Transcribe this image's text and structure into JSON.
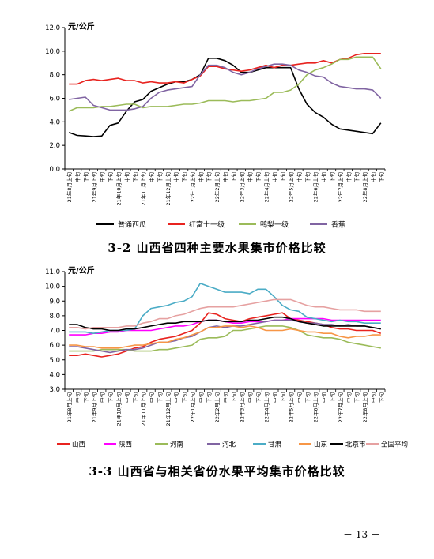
{
  "page_number": "－ 13 －",
  "chart_data": [
    {
      "type": "line",
      "caption": "3-2 山西省四种主要水果集市价格比较",
      "ylabel": "元/公斤",
      "ylim": [
        0,
        12
      ],
      "yticks": [
        "0.0",
        "2.0",
        "4.0",
        "6.0",
        "8.0",
        "10.0",
        "12.0"
      ],
      "ytick_values": [
        0,
        2,
        4,
        6,
        8,
        10,
        12
      ],
      "grid": false,
      "legend_position": "bottom",
      "categories": [
        "21年8月上旬",
        "中旬",
        "下旬",
        "21年9月上旬",
        "中旬",
        "下旬",
        "21年10月上旬",
        "中旬",
        "下旬",
        "21年11月上旬",
        "中旬",
        "下旬",
        "21年12月上旬",
        "中旬",
        "下旬",
        "22年1月上旬",
        "中旬",
        "下旬",
        "22年2月上旬",
        "中旬",
        "下旬",
        "22年3月上旬",
        "中旬",
        "下旬",
        "22年4月上旬",
        "中旬",
        "下旬",
        "22年5月上旬",
        "中旬",
        "下旬",
        "22年6月上旬",
        "中旬",
        "下旬",
        "22年7月上旬",
        "中旬",
        "下旬",
        "22年8月上旬",
        "中旬",
        "下旬"
      ],
      "series": [
        {
          "name": "普通西瓜",
          "color": "#000000",
          "values": [
            3.1,
            2.85,
            2.8,
            2.75,
            2.8,
            3.7,
            3.9,
            4.9,
            5.7,
            5.9,
            6.6,
            6.9,
            7.2,
            7.4,
            7.4,
            7.6,
            8.0,
            9.4,
            9.4,
            9.2,
            8.8,
            8.2,
            8.2,
            8.4,
            8.6,
            8.6,
            8.6,
            8.6,
            6.8,
            5.5,
            4.8,
            4.4,
            3.8,
            3.4,
            3.3,
            3.2,
            3.1,
            3.0,
            3.9
          ]
        },
        {
          "name": "红富士一级",
          "color": "#e8231f",
          "values": [
            7.2,
            7.2,
            7.5,
            7.6,
            7.5,
            7.6,
            7.7,
            7.5,
            7.5,
            7.3,
            7.4,
            7.3,
            7.3,
            7.4,
            7.3,
            7.6,
            7.9,
            8.7,
            8.7,
            8.5,
            8.4,
            8.3,
            8.4,
            8.6,
            8.8,
            8.6,
            8.8,
            8.8,
            8.9,
            9.0,
            9.0,
            9.2,
            9.0,
            9.3,
            9.4,
            9.7,
            9.8,
            9.8,
            9.8
          ]
        },
        {
          "name": "鸭梨一级",
          "color": "#9bbb59",
          "values": [
            4.9,
            5.2,
            5.2,
            5.2,
            5.3,
            5.3,
            5.4,
            5.5,
            5.5,
            5.2,
            5.3,
            5.3,
            5.3,
            5.4,
            5.5,
            5.5,
            5.6,
            5.8,
            5.8,
            5.8,
            5.7,
            5.8,
            5.8,
            5.9,
            6.0,
            6.5,
            6.5,
            6.7,
            7.2,
            8.0,
            8.4,
            8.6,
            8.9,
            9.3,
            9.3,
            9.5,
            9.5,
            9.5,
            8.5
          ]
        },
        {
          "name": "香蕉",
          "color": "#8064a2",
          "values": [
            5.9,
            6.0,
            6.1,
            5.4,
            5.2,
            5.0,
            5.0,
            5.0,
            5.1,
            5.3,
            6.0,
            6.5,
            6.7,
            6.8,
            6.9,
            7.0,
            8.0,
            8.8,
            8.8,
            8.6,
            8.2,
            8.0,
            8.2,
            8.5,
            8.7,
            8.9,
            8.9,
            8.8,
            8.4,
            8.2,
            7.9,
            7.8,
            7.3,
            7.0,
            6.9,
            6.8,
            6.8,
            6.7,
            6.0
          ]
        }
      ]
    },
    {
      "type": "line",
      "caption": "3-3 山西省与相关省份水果平均集市价格比较",
      "ylabel": "元/公斤",
      "ylim": [
        3,
        11
      ],
      "yticks": [
        "3.0",
        "4.0",
        "5.0",
        "6.0",
        "7.0",
        "8.0",
        "9.0",
        "10.0",
        "11.0"
      ],
      "ytick_values": [
        3,
        4,
        5,
        6,
        7,
        8,
        9,
        10,
        11
      ],
      "grid": false,
      "legend_position": "bottom",
      "categories": [
        "21年8月上旬",
        "中旬",
        "下旬",
        "21年9月上旬",
        "中旬",
        "下旬",
        "21年10月上旬",
        "中旬",
        "下旬",
        "21年11月上旬",
        "中旬",
        "下旬",
        "21年12月上旬",
        "中旬",
        "下旬",
        "22年1月上旬",
        "中旬",
        "下旬",
        "22年2月上旬",
        "中旬",
        "下旬",
        "22年3月上旬",
        "中旬",
        "下旬",
        "22年4月上旬",
        "中旬",
        "下旬",
        "22年5月上旬",
        "中旬",
        "下旬",
        "22年6月上旬",
        "中旬",
        "下旬",
        "22年7月上旬",
        "中旬",
        "下旬",
        "22年8月上旬",
        "中旬",
        "下旬"
      ],
      "series": [
        {
          "name": "山西",
          "color": "#e8231f",
          "values": [
            5.3,
            5.3,
            5.4,
            5.3,
            5.2,
            5.3,
            5.4,
            5.6,
            5.8,
            5.9,
            6.2,
            6.4,
            6.5,
            6.6,
            6.8,
            7.0,
            7.5,
            8.2,
            8.1,
            7.8,
            7.7,
            7.6,
            7.8,
            7.9,
            8.0,
            8.1,
            8.2,
            7.8,
            7.7,
            7.6,
            7.5,
            7.4,
            7.2,
            7.1,
            7.1,
            7.0,
            7.0,
            7.0,
            6.8
          ]
        },
        {
          "name": "陕西",
          "color": "#ff00ff",
          "values": [
            6.7,
            6.7,
            6.7,
            6.8,
            6.8,
            6.9,
            6.9,
            7.0,
            7.0,
            7.0,
            7.0,
            7.1,
            7.2,
            7.3,
            7.3,
            7.4,
            7.6,
            7.7,
            7.7,
            7.6,
            7.5,
            7.5,
            7.6,
            7.6,
            7.6,
            7.7,
            7.7,
            7.8,
            7.8,
            7.8,
            7.8,
            7.8,
            7.7,
            7.7,
            7.7,
            7.7,
            7.7,
            7.7,
            7.7
          ]
        },
        {
          "name": "河南",
          "color": "#9bbb59",
          "values": [
            5.6,
            5.6,
            5.6,
            5.6,
            5.7,
            5.7,
            5.7,
            5.7,
            5.6,
            5.6,
            5.6,
            5.7,
            5.7,
            5.8,
            5.9,
            6.0,
            6.4,
            6.5,
            6.5,
            6.6,
            7.0,
            7.0,
            7.1,
            7.2,
            7.3,
            7.3,
            7.3,
            7.2,
            7.0,
            6.7,
            6.6,
            6.5,
            6.5,
            6.4,
            6.2,
            6.1,
            6.0,
            5.9,
            5.8
          ]
        },
        {
          "name": "河北",
          "color": "#8064a2",
          "values": [
            5.9,
            5.9,
            5.8,
            5.7,
            5.6,
            5.5,
            5.6,
            5.7,
            5.7,
            5.8,
            6.0,
            6.2,
            6.2,
            6.3,
            6.5,
            6.6,
            6.9,
            7.2,
            7.3,
            7.2,
            7.3,
            7.3,
            7.4,
            7.5,
            7.6,
            7.7,
            7.7,
            7.7,
            7.6,
            7.5,
            7.5,
            7.4,
            7.4,
            7.3,
            7.4,
            7.3,
            7.3,
            7.2,
            7.1
          ]
        },
        {
          "name": "甘肃",
          "color": "#4bacc6",
          "values": [
            6.9,
            6.9,
            6.9,
            6.8,
            6.9,
            7.0,
            7.0,
            7.0,
            7.1,
            8.0,
            8.5,
            8.6,
            8.7,
            8.9,
            9.0,
            9.3,
            10.2,
            10.0,
            9.8,
            9.6,
            9.6,
            9.6,
            9.5,
            9.8,
            9.8,
            9.3,
            8.7,
            8.4,
            8.3,
            7.9,
            7.8,
            7.7,
            7.6,
            7.7,
            7.6,
            7.6,
            7.5,
            7.5,
            7.5
          ]
        },
        {
          "name": "山东",
          "color": "#f79646",
          "values": [
            6.0,
            6.0,
            5.9,
            5.9,
            5.8,
            5.8,
            5.8,
            5.9,
            6.0,
            6.0,
            6.1,
            6.2,
            6.2,
            6.4,
            6.5,
            6.7,
            6.9,
            7.2,
            7.2,
            7.3,
            7.3,
            7.2,
            7.3,
            7.2,
            7.0,
            7.0,
            7.0,
            7.1,
            7.0,
            6.9,
            6.9,
            6.8,
            6.8,
            6.6,
            6.5,
            6.6,
            6.6,
            6.7,
            6.7
          ]
        },
        {
          "name": "北京市",
          "color": "#000000",
          "values": [
            7.4,
            7.4,
            7.2,
            7.1,
            7.1,
            7.0,
            7.0,
            7.1,
            7.1,
            7.2,
            7.3,
            7.4,
            7.5,
            7.5,
            7.6,
            7.6,
            7.6,
            7.7,
            7.7,
            7.6,
            7.6,
            7.6,
            7.7,
            7.7,
            7.8,
            7.9,
            7.9,
            7.8,
            7.6,
            7.5,
            7.4,
            7.3,
            7.3,
            7.3,
            7.3,
            7.3,
            7.3,
            7.2,
            7.1
          ]
        },
        {
          "name": "全国平均",
          "color": "#e6a1a1",
          "values": [
            7.2,
            7.2,
            7.1,
            7.2,
            7.2,
            7.2,
            7.2,
            7.3,
            7.3,
            7.5,
            7.6,
            7.8,
            7.8,
            8.0,
            8.1,
            8.3,
            8.5,
            8.6,
            8.6,
            8.6,
            8.6,
            8.7,
            8.8,
            8.9,
            9.0,
            9.1,
            9.1,
            9.1,
            8.9,
            8.7,
            8.6,
            8.6,
            8.5,
            8.4,
            8.4,
            8.4,
            8.3,
            8.3,
            8.3
          ]
        }
      ]
    }
  ]
}
